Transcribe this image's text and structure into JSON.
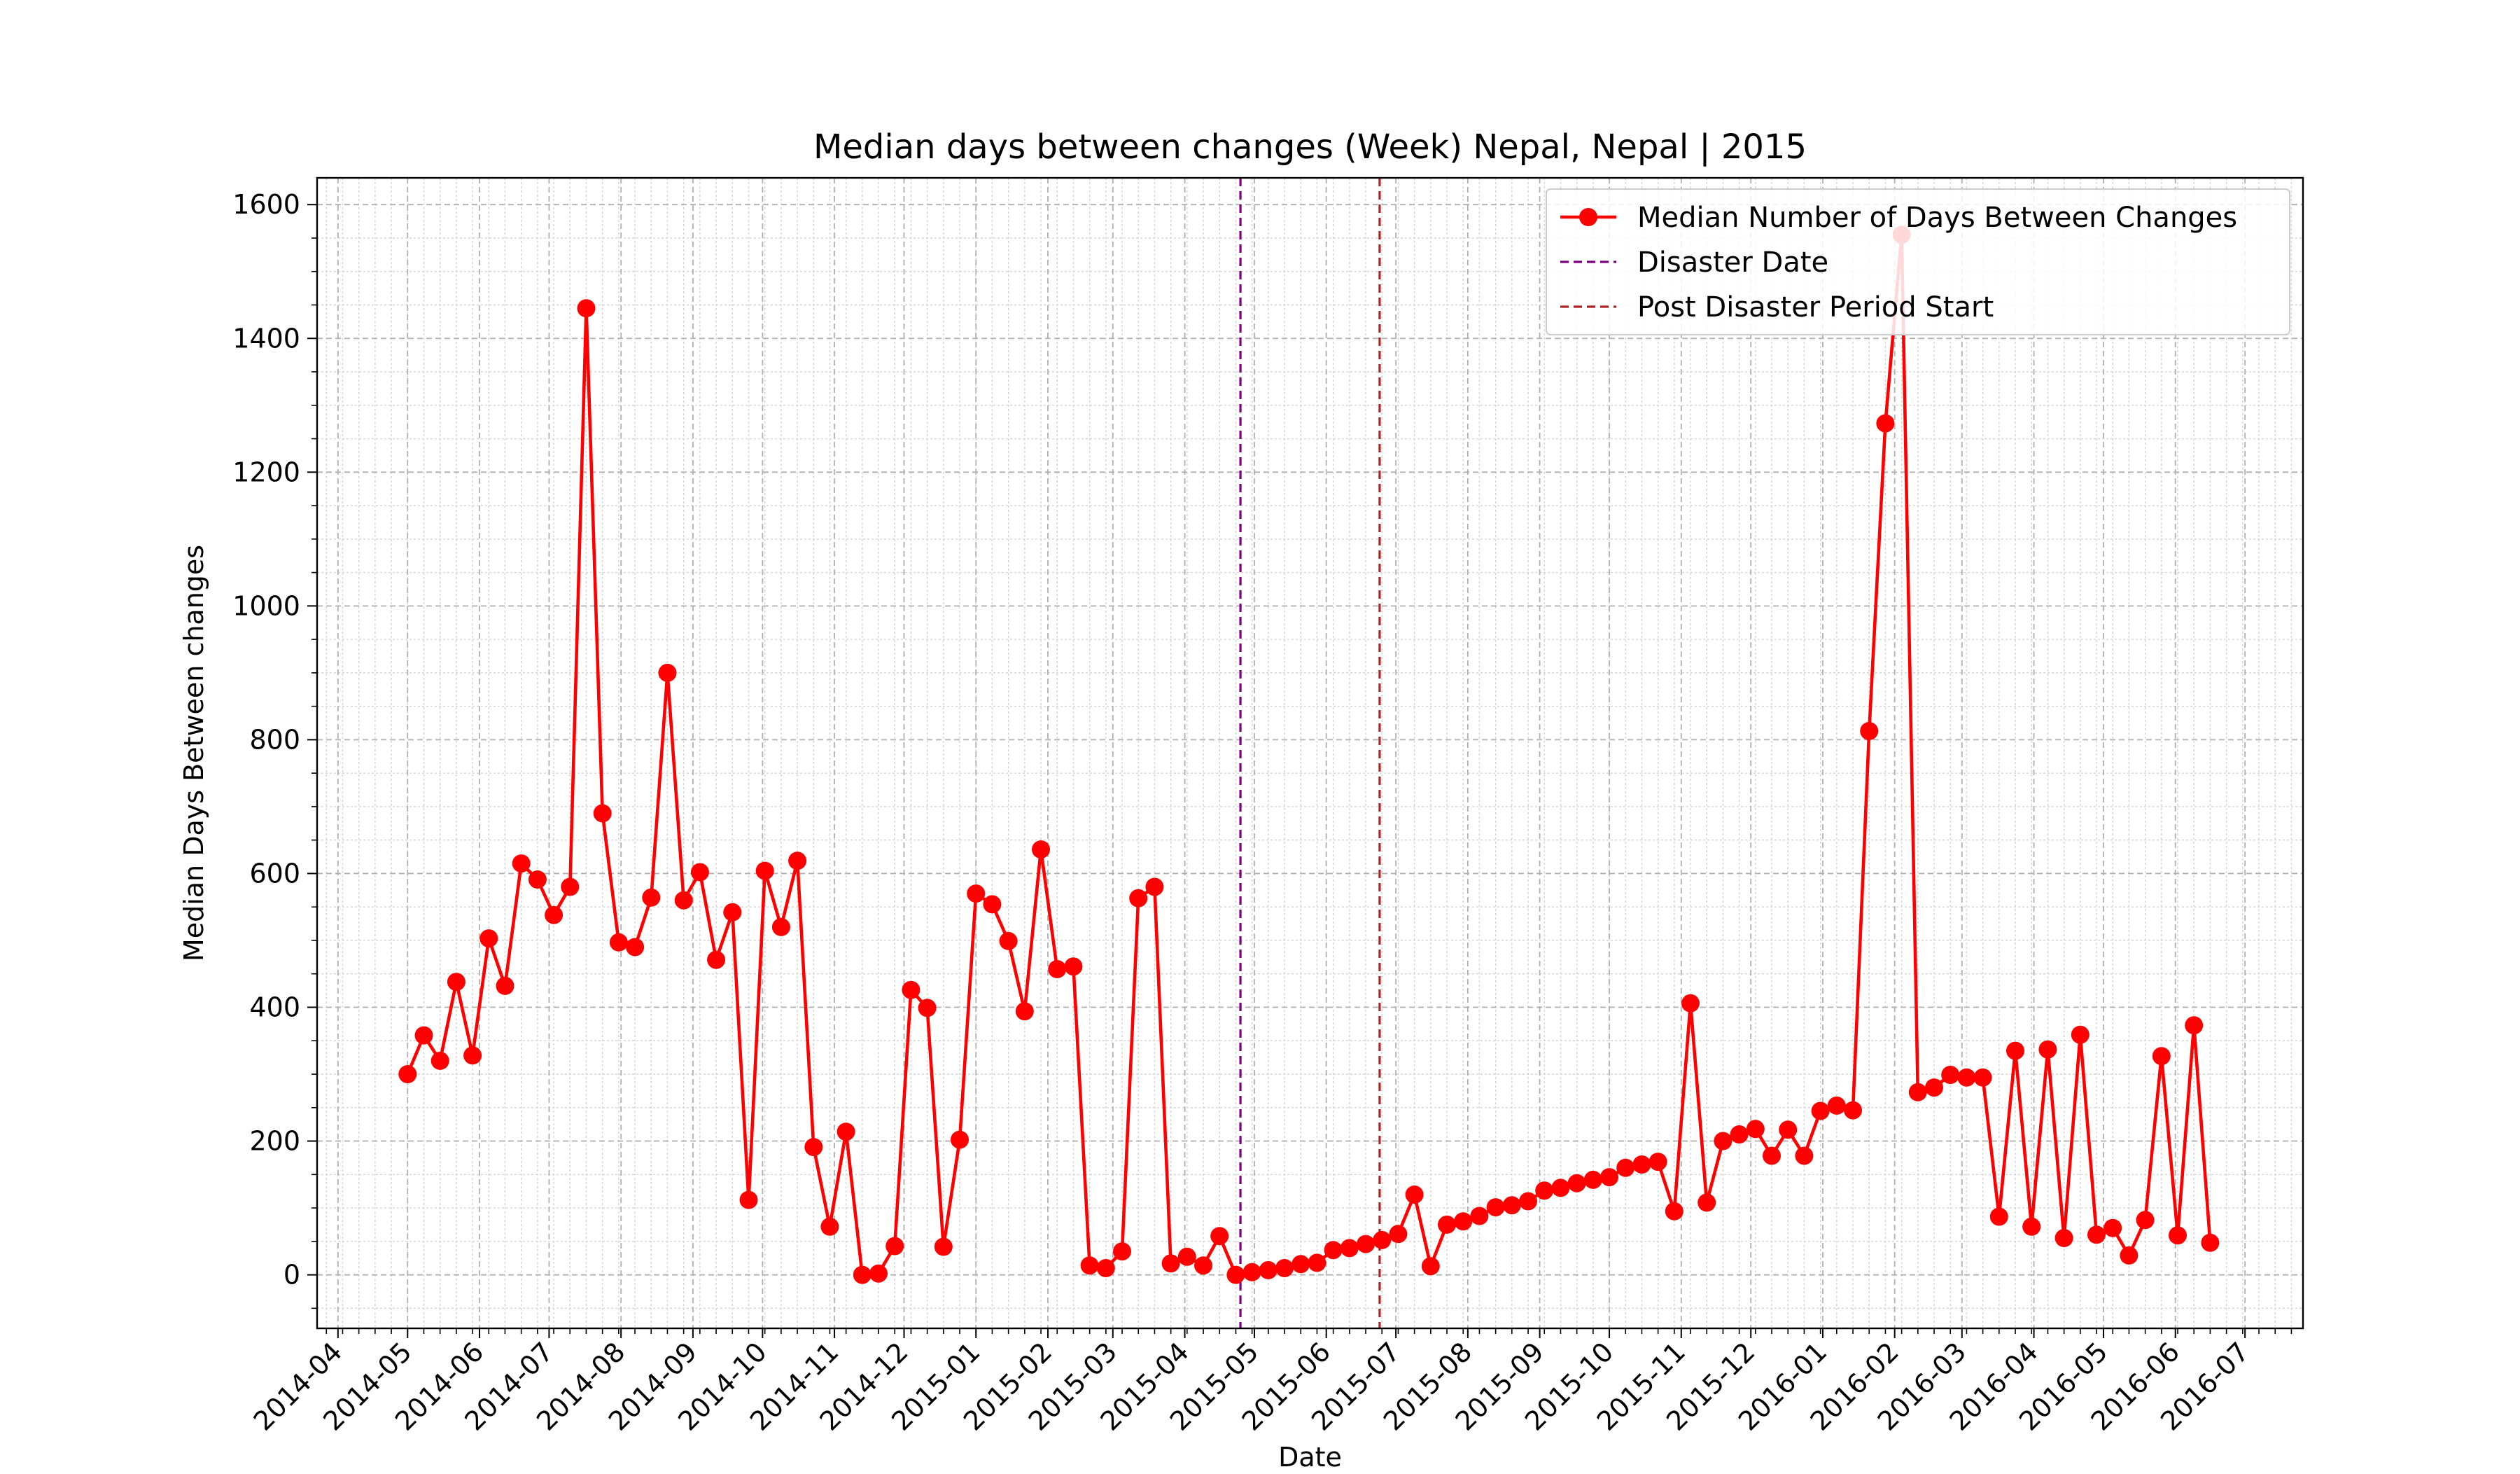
{
  "chart_data": {
    "type": "line",
    "title": "Median days between changes (Week) Nepal, Nepal | 2015",
    "xlabel": "Date",
    "ylabel": "Median Days Between changes",
    "xlim": [
      "2014-03-23",
      "2016-07-26"
    ],
    "ylim": [
      -80,
      1640
    ],
    "yticks": [
      0,
      200,
      400,
      600,
      800,
      1000,
      1200,
      1400,
      1600
    ],
    "yminor_step": 50,
    "xticks": [
      "2014-04",
      "2014-05",
      "2014-06",
      "2014-07",
      "2014-08",
      "2014-09",
      "2014-10",
      "2014-11",
      "2014-12",
      "2015-01",
      "2015-02",
      "2015-03",
      "2015-04",
      "2015-05",
      "2015-06",
      "2015-07",
      "2015-08",
      "2015-09",
      "2015-10",
      "2015-11",
      "2015-12",
      "2016-01",
      "2016-02",
      "2016-03",
      "2016-04",
      "2016-05",
      "2016-06",
      "2016-07"
    ],
    "grid": true,
    "legend_position": "top-right",
    "series": [
      {
        "name": "Median Number of Days Between Changes",
        "color": "#ff0000",
        "marker": "circle",
        "start_date": "2014-05-01",
        "step_days": 7,
        "values": [
          300,
          358,
          320,
          438,
          328,
          503,
          432,
          615,
          591,
          538,
          580,
          1445,
          690,
          497,
          490,
          564,
          900,
          560,
          602,
          471,
          542,
          112,
          604,
          520,
          619,
          191,
          72,
          214,
          0,
          2,
          43,
          426,
          399,
          42,
          202,
          570,
          554,
          499,
          394,
          636,
          457,
          461,
          14,
          10,
          35,
          563,
          580,
          17,
          27,
          14,
          58,
          0,
          4,
          7,
          10,
          16,
          18,
          37,
          40,
          46,
          52,
          61,
          120,
          13,
          75,
          80,
          88,
          101,
          104,
          110,
          126,
          130,
          137,
          142,
          146,
          160,
          165,
          169,
          95,
          406,
          108,
          200,
          210,
          218,
          178,
          217,
          178,
          245,
          253,
          246,
          813,
          1273,
          1555,
          273,
          280,
          299,
          295,
          295,
          87,
          335,
          72,
          337,
          55,
          359,
          60,
          70,
          29,
          82,
          327,
          59,
          373,
          48
        ]
      }
    ],
    "vlines": [
      {
        "name": "Disaster Date",
        "x": "2015-04-25",
        "color": "#800080",
        "style": "dashed"
      },
      {
        "name": "Post Disaster Period Start",
        "x": "2015-06-24",
        "color": "#b22222",
        "style": "dashed"
      }
    ]
  }
}
